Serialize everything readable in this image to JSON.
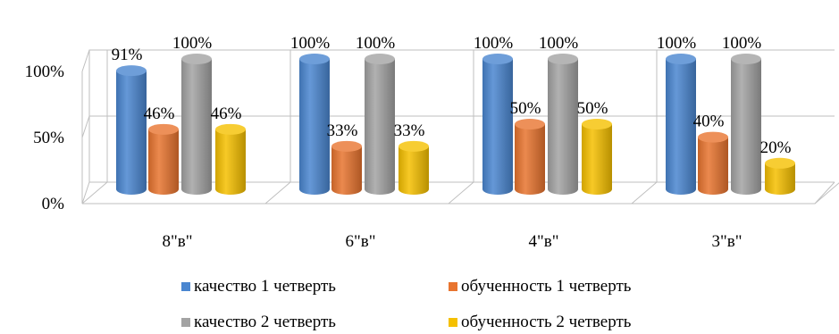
{
  "chart_data": {
    "type": "bar",
    "style": "3d-cylinder",
    "categories": [
      "8\"в\"",
      "6\"в\"",
      "4\"в\"",
      "3\"в\""
    ],
    "series": [
      {
        "name": "качество 1 четверть",
        "color": "#4A86D0",
        "values": [
          91,
          100,
          100,
          100
        ],
        "labels": [
          "91%",
          "100%",
          "100%",
          "100%"
        ]
      },
      {
        "name": "обученность 1 четверть",
        "color": "#E8742F",
        "values": [
          46,
          33,
          50,
          40
        ],
        "labels": [
          "46%",
          "33%",
          "50%",
          "40%"
        ]
      },
      {
        "name": "качество 2 четверть",
        "color": "#A3A3A3",
        "values": [
          100,
          100,
          100,
          100
        ],
        "labels": [
          "100%",
          "100%",
          "100%",
          "100%"
        ]
      },
      {
        "name": "обученность 2 четверть",
        "color": "#F5C000",
        "values": [
          46,
          33,
          50,
          20
        ],
        "labels": [
          "46%",
          "33%",
          "50%",
          "20%"
        ]
      }
    ],
    "yticks": [
      "0%",
      "50%",
      "100%"
    ],
    "ylim": [
      0,
      100
    ],
    "grid": true,
    "legend": "bottom"
  }
}
